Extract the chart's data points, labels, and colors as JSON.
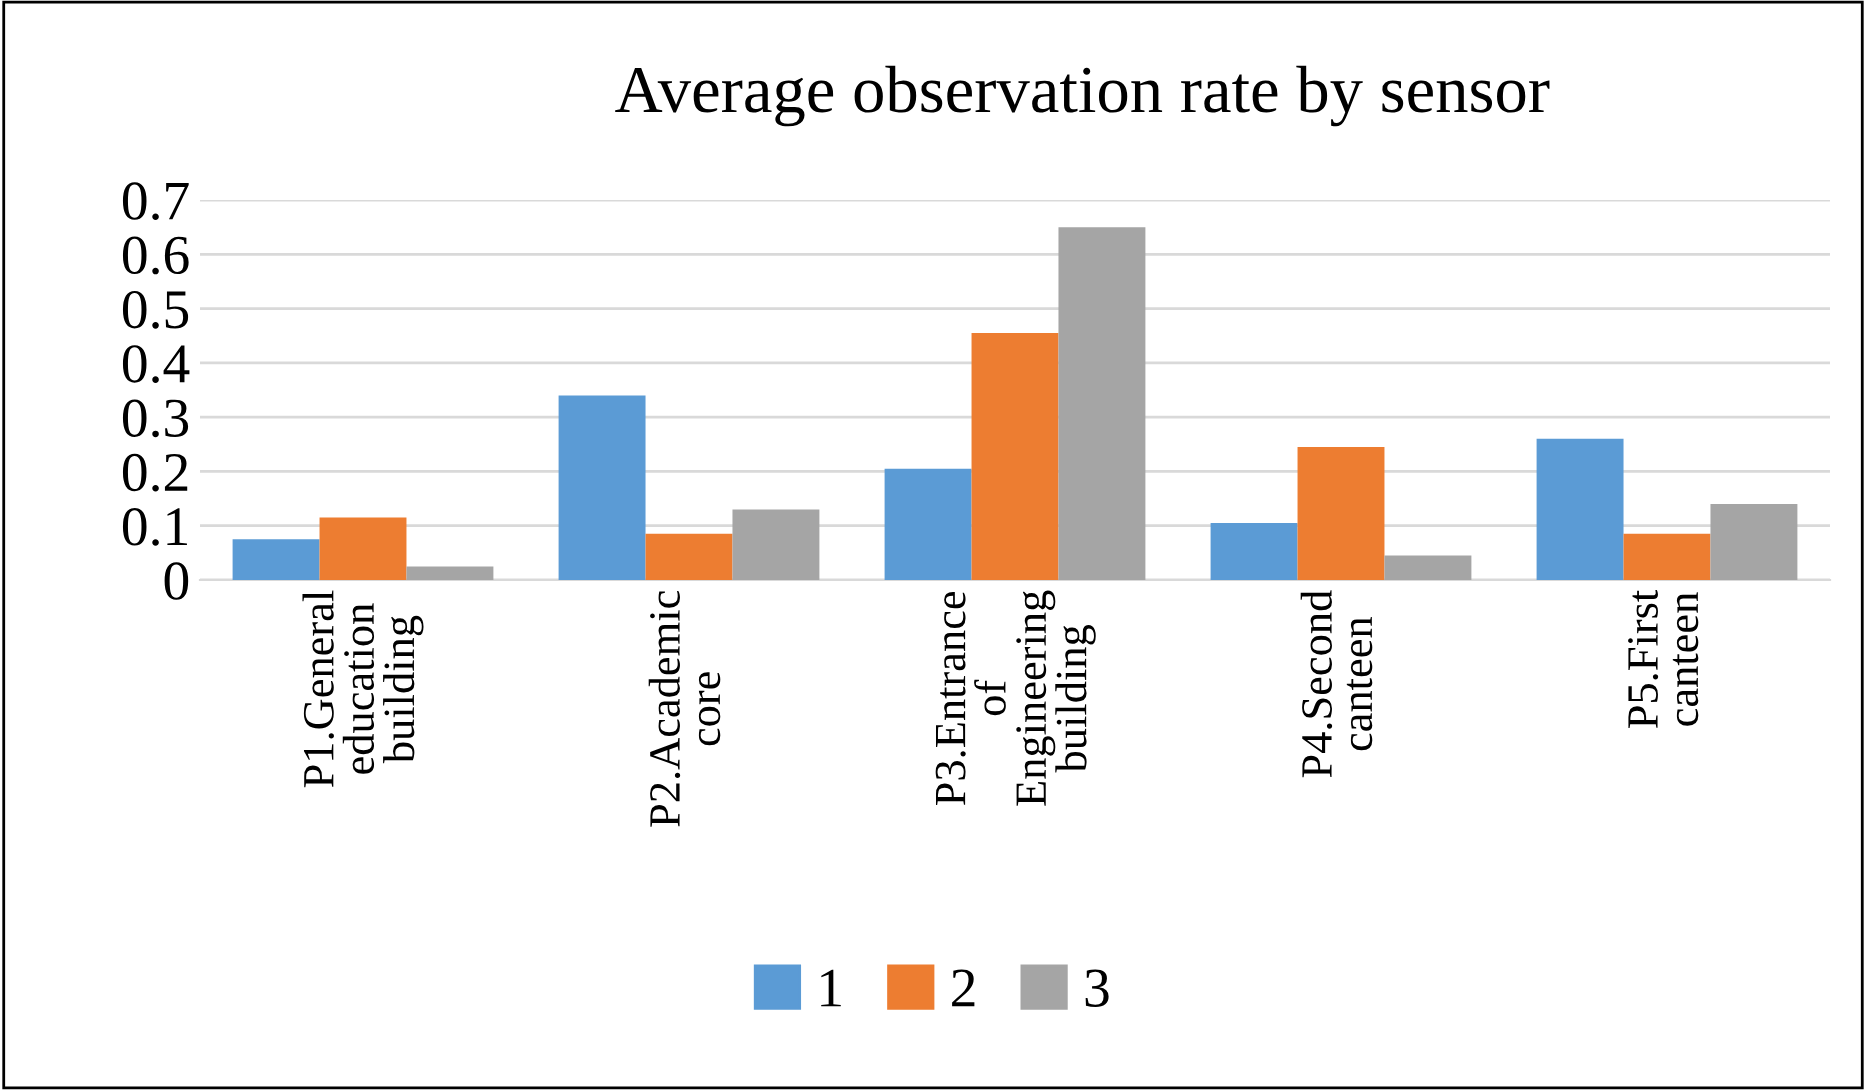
{
  "chart_data": {
    "type": "bar",
    "title": "Average observation rate by sensor",
    "categories": [
      "P1.General\neducation\nbuilding",
      "P2.Academic\ncore",
      "P3.Entrance\nof\nEngineering\nbuilding",
      "P4.Second\ncanteen",
      "P5.First\ncanteen"
    ],
    "series": [
      {
        "name": "1",
        "color": "#5b9bd5",
        "values": [
          0.075,
          0.34,
          0.205,
          0.105,
          0.26
        ]
      },
      {
        "name": "2",
        "color": "#ed7d31",
        "values": [
          0.115,
          0.085,
          0.455,
          0.245,
          0.085
        ]
      },
      {
        "name": "3",
        "color": "#a5a5a5",
        "values": [
          0.025,
          0.13,
          0.65,
          0.045,
          0.14
        ]
      }
    ],
    "ylim": [
      0,
      0.7
    ],
    "yticks": [
      0,
      0.1,
      0.2,
      0.3,
      0.4,
      0.5,
      0.6,
      0.7
    ],
    "grid": "y",
    "legend": "bottom"
  }
}
